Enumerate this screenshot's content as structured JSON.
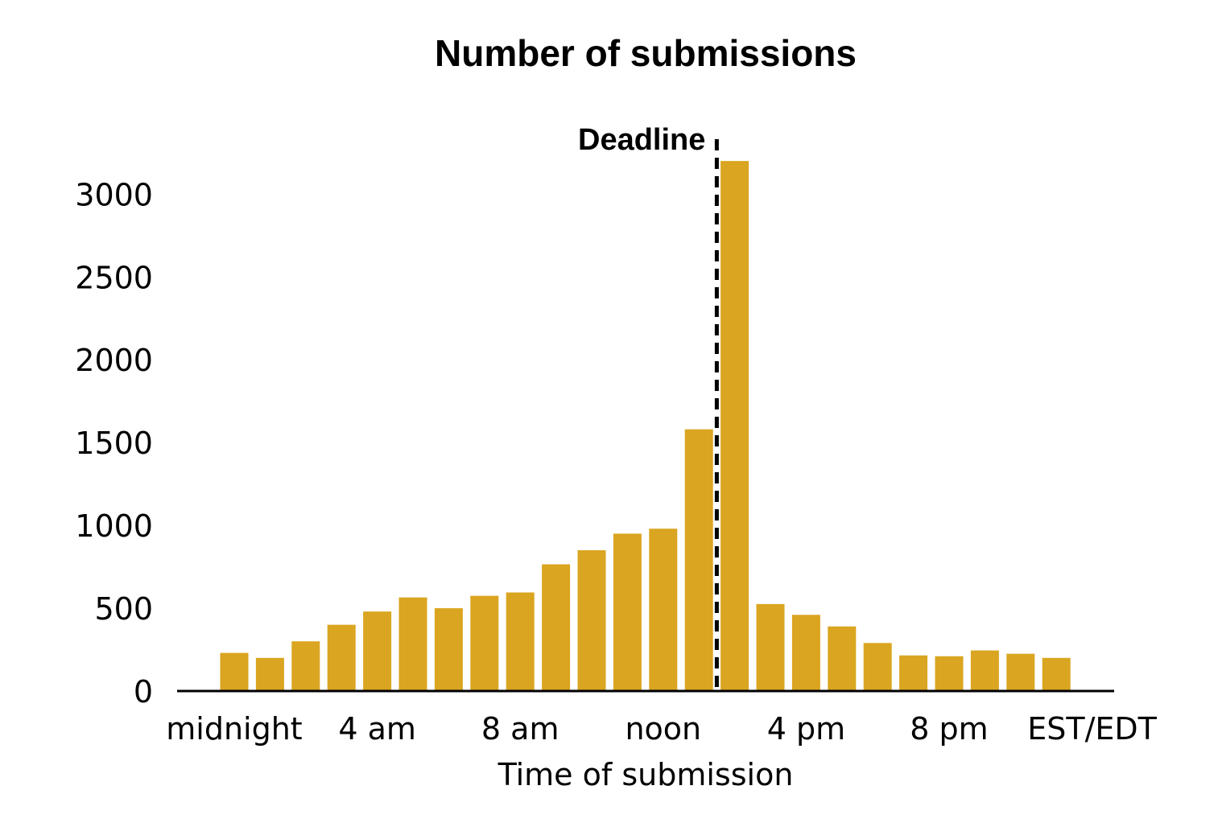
{
  "chart_data": {
    "type": "bar",
    "title": "Number of submissions",
    "xlabel": "Time of submission",
    "ylabel": "",
    "ylim": [
      0,
      3300
    ],
    "yticks": [
      0,
      500,
      1000,
      1500,
      2000,
      2500,
      3000
    ],
    "xtick_labels": [
      "midnight",
      "4 am",
      "8 am",
      "noon",
      "4 pm",
      "8 pm",
      "EST/EDT"
    ],
    "xtick_hours": [
      0,
      4,
      8,
      12,
      16,
      20,
      24
    ],
    "hours": [
      0,
      1,
      2,
      3,
      4,
      5,
      6,
      7,
      8,
      9,
      10,
      11,
      12,
      13,
      14,
      15,
      16,
      17,
      18,
      19,
      20,
      21,
      22,
      23
    ],
    "values": [
      230,
      200,
      300,
      400,
      480,
      565,
      500,
      575,
      595,
      765,
      850,
      950,
      980,
      1580,
      3200,
      525,
      460,
      390,
      290,
      215,
      210,
      245,
      225,
      200
    ],
    "bar_color": "#DAA520",
    "grid": false,
    "annotation": {
      "text": "Deadline",
      "hour": 13.5
    }
  }
}
